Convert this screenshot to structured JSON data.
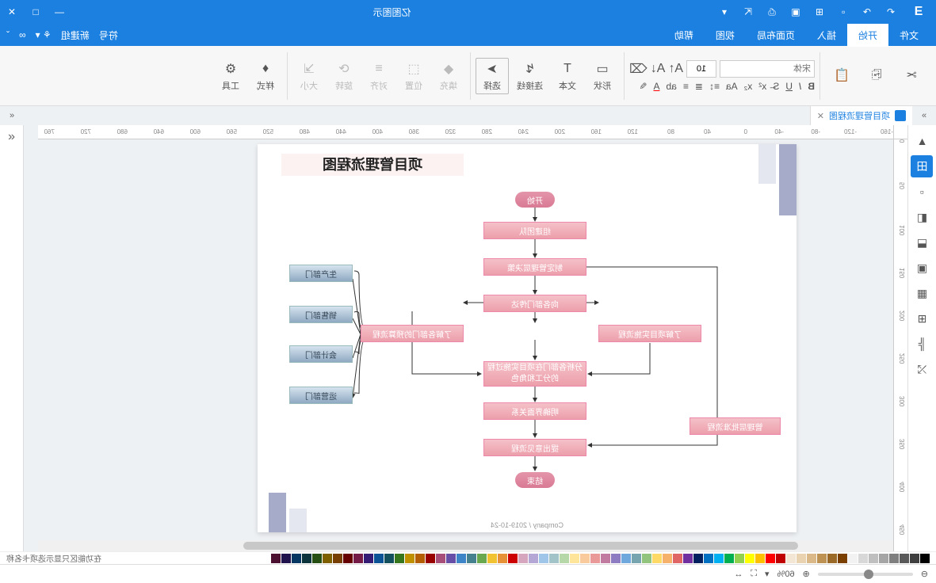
{
  "app": {
    "title": "亿图图示"
  },
  "menuTabs": [
    "文件",
    "开始",
    "插入",
    "页面布局",
    "视图",
    "帮助"
  ],
  "activeMenuTab": 1,
  "menuRight": [
    "符号",
    "新建组",
    "▾"
  ],
  "ribbon": {
    "scissors": "剪切",
    "copy": "复制",
    "paste": "粘贴",
    "font_placeholder": "宋体",
    "fontsize": "10",
    "select": "选择",
    "connector": "连接线",
    "text": "文本",
    "shape": "形状",
    "fill": "填充",
    "pos": "位置",
    "align": "对齐",
    "rotate": "旋转",
    "size": "大小",
    "style": "样式",
    "tools": "工具"
  },
  "docTab": {
    "label": "项目管理流程图"
  },
  "rulerH": [
    "-160",
    "-120",
    "-80",
    "-40",
    "0",
    "40",
    "80",
    "120",
    "160",
    "200",
    "240",
    "280",
    "320",
    "360",
    "400",
    "440",
    "480",
    "520",
    "560",
    "600",
    "640",
    "680",
    "720",
    "760"
  ],
  "rulerV": [
    "0",
    "50",
    "100",
    "150",
    "200",
    "250",
    "300",
    "350",
    "400",
    "450"
  ],
  "page": {
    "title": "项目管理流程图",
    "footer": "Company / 2019-10-24"
  },
  "flow": {
    "start": "开始",
    "n1": "组建团队",
    "n2": "制定管理层决策",
    "n3": "向各部门传达",
    "n4": "了解各部门的预算流程",
    "n5": "了解项目实施流程",
    "n6": "分析各部门在项目实施过程的分工和角色",
    "n7": "明确界面关系",
    "n8": "提出意见流程",
    "n9": "管理层批准流程",
    "end": "结束",
    "d1": "生产部门",
    "d2": "销售部门",
    "d3": "会计部门",
    "d4": "运营部门"
  },
  "left_items": [
    "▲",
    "田",
    "▫",
    "◧",
    "⬓",
    "▣",
    "▦",
    "⊞",
    "╠",
    "⤭"
  ],
  "colors": [
    "#000000",
    "#3f3f3f",
    "#595959",
    "#7f7f7f",
    "#a5a5a5",
    "#bfbfbf",
    "#d8d8d8",
    "#f2f2f2",
    "#7b3f00",
    "#9c6a28",
    "#bd9252",
    "#dab887",
    "#e8d2b0",
    "#f3e6d5",
    "#c00000",
    "#ff0000",
    "#ffc000",
    "#ffff00",
    "#92d050",
    "#00b050",
    "#00b0f0",
    "#0070c0",
    "#002060",
    "#7030a0",
    "#e06666",
    "#f6b26b",
    "#ffd966",
    "#93c47d",
    "#76a5af",
    "#6fa8dc",
    "#8e7cc3",
    "#c27ba0",
    "#ea9999",
    "#f9cb9c",
    "#ffe599",
    "#b6d7a8",
    "#a2c4c9",
    "#9fc5e8",
    "#b4a7d6",
    "#d5a6bd",
    "#cc0000",
    "#e69138",
    "#f1c232",
    "#6aa84f",
    "#45818e",
    "#3d85c6",
    "#674ea7",
    "#a64d79",
    "#990000",
    "#b45f06",
    "#bf9000",
    "#38761d",
    "#134f5c",
    "#0b5394",
    "#351c75",
    "#741b47",
    "#660000",
    "#783f04",
    "#7f6000",
    "#274e13",
    "#0c343d",
    "#073763",
    "#20124d",
    "#4c1130"
  ],
  "status": {
    "zoom": "60%",
    "hint": "在功能区只显示选项卡名称"
  }
}
